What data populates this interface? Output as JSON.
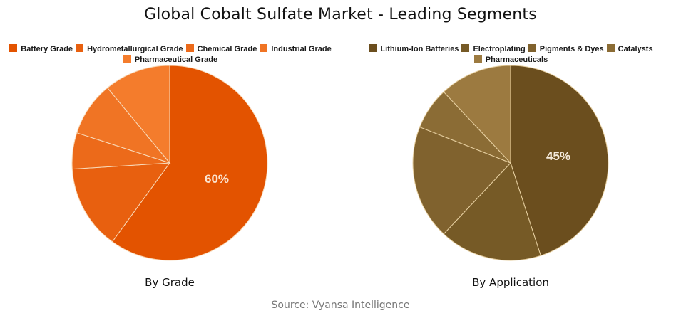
{
  "title": "Global Cobalt Sulfate Market - Leading Segments",
  "source": "Source: Vyansa Intelligence",
  "left": {
    "caption": "By Grade",
    "legend": [
      {
        "label": "Battery Grade",
        "color": "#E35300"
      },
      {
        "label": "Hydrometallurgical Grade",
        "color": "#E8600F"
      },
      {
        "label": "Chemical Grade",
        "color": "#EC6A1A"
      },
      {
        "label": "Industrial Grade",
        "color": "#F07424"
      },
      {
        "label": "Pharmaceutical Grade",
        "color": "#F47C2C"
      }
    ],
    "center_label": "60%"
  },
  "right": {
    "caption": "By Application",
    "legend": [
      {
        "label": "Lithium-Ion Batteries",
        "color": "#6B4E1E"
      },
      {
        "label": "Electroplating",
        "color": "#765A26"
      },
      {
        "label": "Pigments & Dyes",
        "color": "#80622E"
      },
      {
        "label": "Catalysts",
        "color": "#8B6C35"
      },
      {
        "label": "Pharmaceuticals",
        "color": "#9C7A40"
      }
    ],
    "center_label": "45%"
  },
  "chart_data": [
    {
      "type": "pie",
      "title": "By Grade",
      "categories": [
        "Battery Grade",
        "Hydrometallurgical Grade",
        "Chemical Grade",
        "Industrial Grade",
        "Pharmaceutical Grade"
      ],
      "values": [
        60,
        14,
        6,
        9,
        11
      ],
      "colors": [
        "#E35300",
        "#E8600F",
        "#EC6A1A",
        "#F07424",
        "#F47C2C"
      ],
      "data_labels": [
        "60%"
      ],
      "legend_position": "top",
      "start_angle": "12 o'clock, clockwise"
    },
    {
      "type": "pie",
      "title": "By Application",
      "categories": [
        "Lithium-Ion Batteries",
        "Electroplating",
        "Pigments & Dyes",
        "Catalysts",
        "Pharmaceuticals"
      ],
      "values": [
        45,
        17,
        19,
        7,
        12
      ],
      "colors": [
        "#6B4E1E",
        "#765A26",
        "#80622E",
        "#8B6C35",
        "#9C7A40"
      ],
      "data_labels": [
        "45%"
      ],
      "legend_position": "top",
      "start_angle": "12 o'clock, clockwise"
    }
  ]
}
